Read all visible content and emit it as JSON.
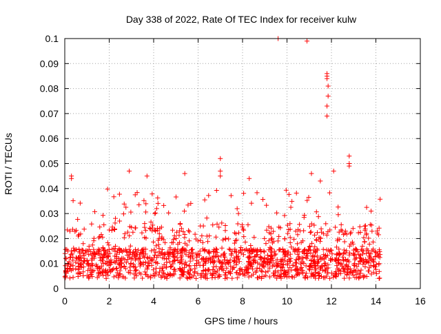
{
  "chart_data": {
    "type": "scatter",
    "title": "Day 338 of 2022, Rate Of TEC Index for receiver kulw",
    "xlabel": "GPS time / hours",
    "ylabel": "ROTI / TECUs",
    "xlim": [
      0,
      16
    ],
    "ylim": [
      0,
      0.1
    ],
    "xticks": [
      0,
      2,
      4,
      6,
      8,
      10,
      12,
      14,
      16
    ],
    "yticks": [
      0,
      0.01,
      0.02,
      0.03,
      0.04,
      0.05,
      0.06,
      0.07,
      0.08,
      0.09,
      0.1
    ],
    "xtick_labels": [
      "0",
      "2",
      "4",
      "6",
      "8",
      "10",
      "12",
      "14",
      "16"
    ],
    "ytick_labels": [
      "0",
      "0.01",
      "0.02",
      "0.03",
      "0.04",
      "0.05",
      "0.06",
      "0.07",
      "0.08",
      "0.09",
      "0.1"
    ],
    "grid": true,
    "marker": "+",
    "color": "#ff0000",
    "data_range_hours": [
      0,
      14.2
    ],
    "outliers": [
      {
        "x": 0.3,
        "y": 0.045
      },
      {
        "x": 0.3,
        "y": 0.044
      },
      {
        "x": 2.9,
        "y": 0.047
      },
      {
        "x": 3.7,
        "y": 0.045
      },
      {
        "x": 5.4,
        "y": 0.046
      },
      {
        "x": 7.0,
        "y": 0.052
      },
      {
        "x": 7.0,
        "y": 0.047
      },
      {
        "x": 7.0,
        "y": 0.045
      },
      {
        "x": 8.3,
        "y": 0.044
      },
      {
        "x": 9.6,
        "y": 0.1
      },
      {
        "x": 10.9,
        "y": 0.099
      },
      {
        "x": 11.1,
        "y": 0.046
      },
      {
        "x": 11.5,
        "y": 0.043
      },
      {
        "x": 11.8,
        "y": 0.086
      },
      {
        "x": 11.8,
        "y": 0.085
      },
      {
        "x": 11.8,
        "y": 0.084
      },
      {
        "x": 11.85,
        "y": 0.081
      },
      {
        "x": 11.85,
        "y": 0.077
      },
      {
        "x": 11.8,
        "y": 0.073
      },
      {
        "x": 11.8,
        "y": 0.069
      },
      {
        "x": 12.1,
        "y": 0.047
      },
      {
        "x": 12.8,
        "y": 0.053
      },
      {
        "x": 12.8,
        "y": 0.05
      },
      {
        "x": 12.8,
        "y": 0.049
      }
    ]
  }
}
